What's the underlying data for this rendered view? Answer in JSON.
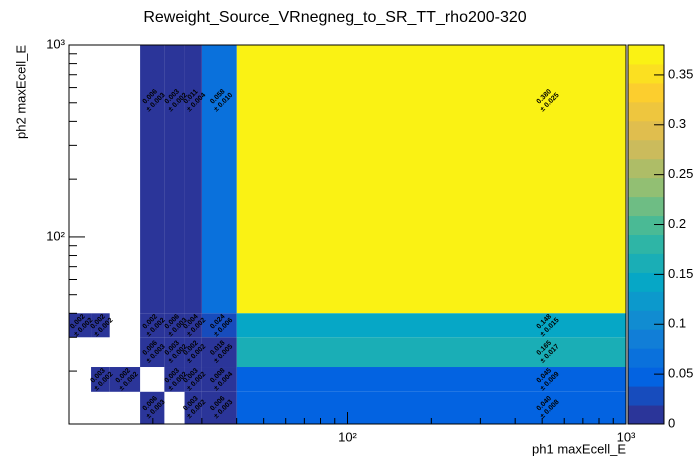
{
  "chart_data": {
    "type": "heatmap",
    "title": "Reweight_Source_VRnegneg_to_SR_TT_rho200-320",
    "x_label": "ph1 maxEcell_E",
    "y_label": "ph2 maxEcell_E",
    "xlog": true,
    "ylog": true,
    "xlim": [
      10,
      1000
    ],
    "ylim": [
      10.6,
      1000
    ],
    "xticks": [
      {
        "value": 100,
        "label": "10²"
      },
      {
        "value": 1000,
        "label": "10³"
      }
    ],
    "yticks": [
      {
        "value": 100,
        "label": "10²"
      },
      {
        "value": 1000,
        "label": "10³"
      }
    ],
    "xminorticks": [
      20,
      30,
      40,
      50,
      60,
      70,
      80,
      90,
      200,
      300,
      400,
      500,
      600,
      700,
      800,
      900
    ],
    "yminorticks": [
      20,
      30,
      40,
      50,
      60,
      70,
      80,
      90,
      200,
      300,
      400,
      500,
      600,
      700,
      800,
      900
    ],
    "zlim": [
      0,
      0.38
    ],
    "zticks": [
      0,
      0.05,
      0.1,
      0.15,
      0.2,
      0.25,
      0.3,
      0.35
    ],
    "palette": [
      "#352a87",
      "#0363e1",
      "#1485d4",
      "#06a7c6",
      "#38b99e",
      "#92bf73",
      "#d9ba56",
      "#fcce2e",
      "#f9fb0e"
    ],
    "cells": [
      {
        "x": [
          40,
          1000
        ],
        "y": [
          40,
          1000
        ],
        "value": 0.38,
        "error": 0.025,
        "value_label": "0.380",
        "error_label": "± 0.025"
      },
      {
        "x": [
          40,
          1000
        ],
        "y": [
          30,
          40
        ],
        "value": 0.148,
        "error": 0.015,
        "value_label": "0.148",
        "error_label": "± 0.015"
      },
      {
        "x": [
          40,
          1000
        ],
        "y": [
          21,
          30
        ],
        "value": 0.165,
        "error": 0.017,
        "value_label": "0.165",
        "error_label": "± 0.017"
      },
      {
        "x": [
          40,
          1000
        ],
        "y": [
          15.6,
          21
        ],
        "value": 0.045,
        "error": 0.009,
        "value_label": "0.045",
        "error_label": "± 0.009"
      },
      {
        "x": [
          40,
          1000
        ],
        "y": [
          10.6,
          15.6
        ],
        "value": 0.04,
        "error": 0.008,
        "value_label": "0.040",
        "error_label": "± 0.008"
      },
      {
        "x": [
          30,
          40
        ],
        "y": [
          40,
          1000
        ],
        "value": 0.058,
        "error": 0.01,
        "value_label": "0.058",
        "error_label": "± 0.010"
      },
      {
        "x": [
          30,
          40
        ],
        "y": [
          30,
          40
        ],
        "value": 0.024,
        "error": 0.006,
        "value_label": "0.024",
        "error_label": "± 0.006"
      },
      {
        "x": [
          30,
          40
        ],
        "y": [
          21,
          30
        ],
        "value": 0.018,
        "error": 0.005,
        "value_label": "0.018",
        "error_label": "± 0.005"
      },
      {
        "x": [
          30,
          40
        ],
        "y": [
          15.6,
          21
        ],
        "value": 0.008,
        "error": 0.004,
        "value_label": "0.008",
        "error_label": "± 0.004"
      },
      {
        "x": [
          30,
          40
        ],
        "y": [
          10.6,
          15.6
        ],
        "value": 0.006,
        "error": 0.003,
        "value_label": "0.006",
        "error_label": "± 0.003"
      },
      {
        "x": [
          18,
          22
        ],
        "y": [
          40,
          1000
        ],
        "value": 0.006,
        "error": 0.003,
        "value_label": "0.006",
        "error_label": "± 0.003"
      },
      {
        "x": [
          22,
          26
        ],
        "y": [
          40,
          1000
        ],
        "value": 0.003,
        "error": 0.002,
        "value_label": "0.003",
        "error_label": "± 0.002"
      },
      {
        "x": [
          26,
          30
        ],
        "y": [
          40,
          1000
        ],
        "value": 0.011,
        "error": 0.004,
        "value_label": "0.011",
        "error_label": "± 0.004"
      },
      {
        "x": [
          10,
          12
        ],
        "y": [
          30,
          40
        ],
        "value": 0.002,
        "error": 0.002,
        "value_label": "0.002",
        "error_label": "± 0.002"
      },
      {
        "x": [
          12,
          14
        ],
        "y": [
          30,
          40
        ],
        "value": 0.002,
        "error": 0.002,
        "value_label": "0.002",
        "error_label": "± 0.002"
      },
      {
        "x": [
          18,
          22
        ],
        "y": [
          30,
          40
        ],
        "value": 0.002,
        "error": 0.002,
        "value_label": "0.002",
        "error_label": "± 0.002"
      },
      {
        "x": [
          22,
          26
        ],
        "y": [
          30,
          40
        ],
        "value": 0.006,
        "error": 0.003,
        "value_label": "0.006",
        "error_label": "± 0.003"
      },
      {
        "x": [
          26,
          30
        ],
        "y": [
          30,
          40
        ],
        "value": 0.004,
        "error": 0.002,
        "value_label": "0.004",
        "error_label": "± 0.002"
      },
      {
        "x": [
          18,
          22
        ],
        "y": [
          21,
          30
        ],
        "value": 0.006,
        "error": 0.003,
        "value_label": "0.006",
        "error_label": "± 0.003"
      },
      {
        "x": [
          22,
          26
        ],
        "y": [
          21,
          30
        ],
        "value": 0.003,
        "error": 0.002,
        "value_label": "0.003",
        "error_label": "± 0.002"
      },
      {
        "x": [
          26,
          30
        ],
        "y": [
          21,
          30
        ],
        "value": 0.002,
        "error": 0.002,
        "value_label": "0.002",
        "error_label": "± 0.002"
      },
      {
        "x": [
          12,
          14
        ],
        "y": [
          15.6,
          21
        ],
        "value": 0.003,
        "error": 0.002,
        "value_label": "0.003",
        "error_label": "± 0.002"
      },
      {
        "x": [
          14,
          18
        ],
        "y": [
          15.6,
          21
        ],
        "value": 0.002,
        "error": 0.002,
        "value_label": "0.002",
        "error_label": "± 0.002"
      },
      {
        "x": [
          22,
          26
        ],
        "y": [
          15.6,
          21
        ],
        "value": 0.003,
        "error": 0.002,
        "value_label": "0.003",
        "error_label": "± 0.002"
      },
      {
        "x": [
          26,
          30
        ],
        "y": [
          15.6,
          21
        ],
        "value": 0.003,
        "error": 0.002,
        "value_label": "0.003",
        "error_label": "± 0.002"
      },
      {
        "x": [
          18,
          22
        ],
        "y": [
          10.6,
          15.6
        ],
        "value": 0.006,
        "error": 0.003,
        "value_label": "0.006",
        "error_label": "± 0.003"
      },
      {
        "x": [
          26,
          30
        ],
        "y": [
          10.6,
          15.6
        ],
        "value": 0.003,
        "error": 0.002,
        "value_label": "0.003",
        "error_label": "± 0.002"
      }
    ]
  }
}
